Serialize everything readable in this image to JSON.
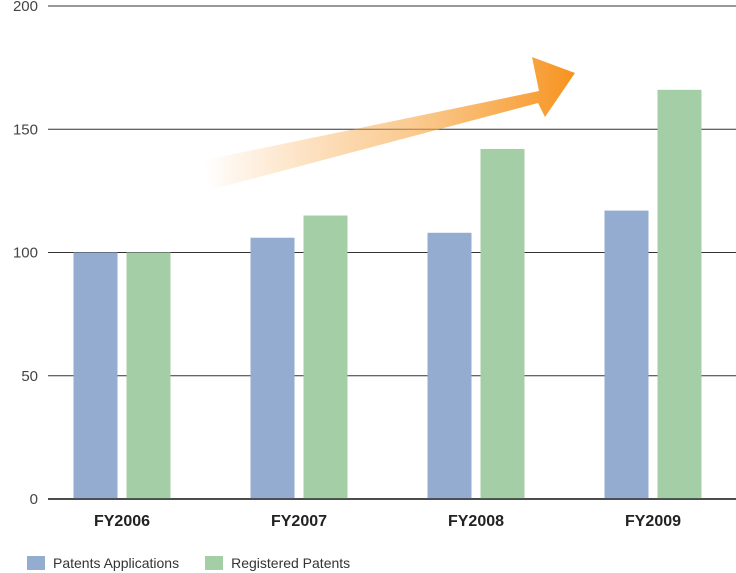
{
  "chart_data": {
    "type": "bar",
    "categories": [
      "FY2006",
      "FY2007",
      "FY2008",
      "FY2009"
    ],
    "series": [
      {
        "name": "Patents Applications",
        "values": [
          100,
          106,
          108,
          117
        ],
        "color": "#94acd0"
      },
      {
        "name": "Registered Patents",
        "values": [
          100,
          115,
          142,
          166
        ],
        "color": "#a4cea6"
      }
    ],
    "ylim": [
      0,
      200
    ],
    "yticks": [
      "0",
      "50",
      "100",
      "150",
      "200"
    ],
    "grid": true,
    "legend_position": "bottom-left",
    "decoration": {
      "arrow_color": "#f7931e",
      "arrow_direction": "up-right"
    }
  }
}
